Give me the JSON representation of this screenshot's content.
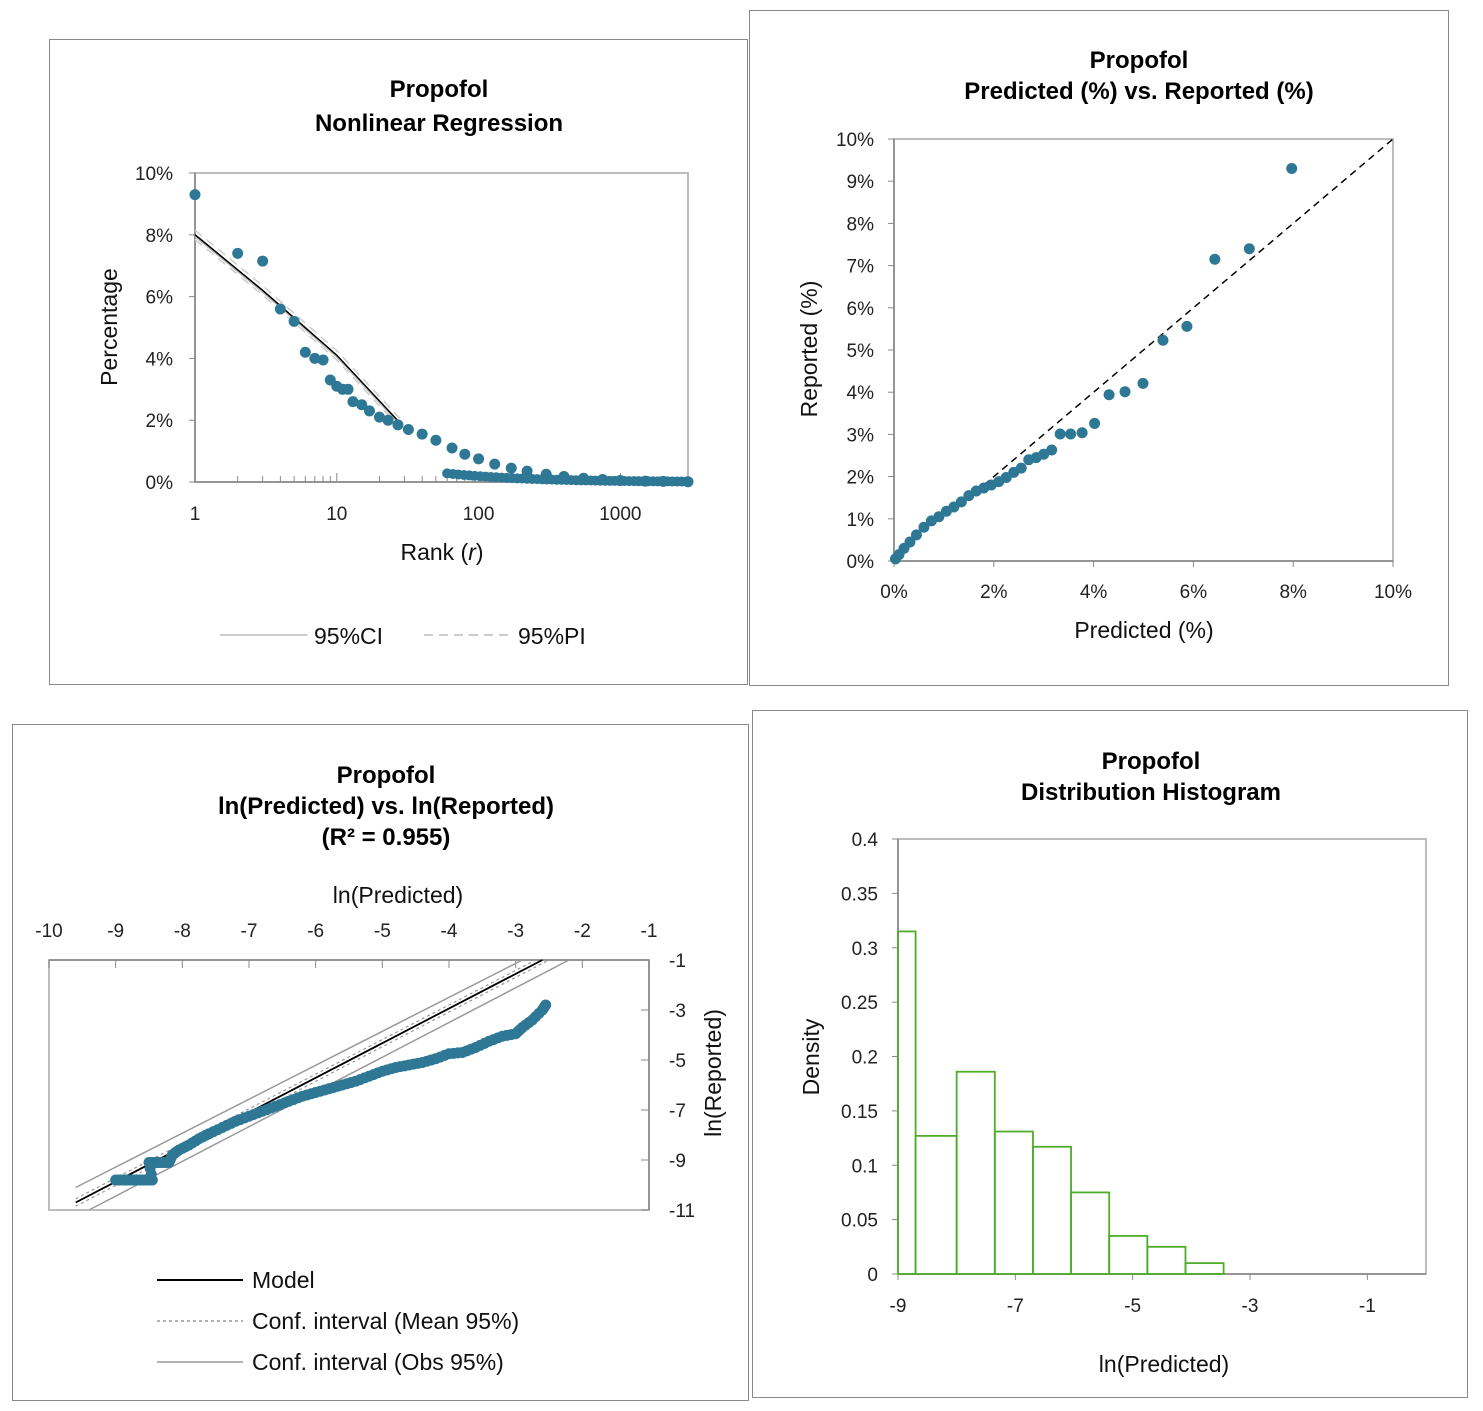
{
  "chart_data": [
    {
      "type": "scatter",
      "title": "Propofol",
      "subtitle": "Nonlinear Regression",
      "xlabel": "Rank (r)",
      "ylabel": "Percentage",
      "x_scale": "log",
      "xlim": [
        1,
        3000
      ],
      "ylim": [
        0,
        0.1
      ],
      "x_ticks": [
        "1",
        "10",
        "100",
        "1000"
      ],
      "y_ticks": [
        "0%",
        "2%",
        "4%",
        "6%",
        "8%",
        "10%"
      ],
      "grid": false,
      "legend": [
        "95%CI",
        "95%PI"
      ],
      "legend_position": "bottom",
      "series": [
        {
          "values_xy": [
            [
              1,
              0.093
            ],
            [
              2,
              0.074
            ],
            [
              3,
              0.0715
            ],
            [
              4,
              0.056
            ],
            [
              5,
              0.052
            ],
            [
              6,
              0.042
            ],
            [
              7,
              0.04
            ],
            [
              8,
              0.0395
            ],
            [
              9,
              0.033
            ],
            [
              10,
              0.031
            ],
            [
              11,
              0.03
            ],
            [
              12,
              0.03
            ],
            [
              13,
              0.026
            ],
            [
              15,
              0.025
            ],
            [
              17,
              0.023
            ],
            [
              20,
              0.021
            ],
            [
              23,
              0.02
            ],
            [
              27,
              0.0185
            ],
            [
              32,
              0.017
            ],
            [
              40,
              0.0155
            ],
            [
              50,
              0.0135
            ],
            [
              65,
              0.011
            ],
            [
              80,
              0.009
            ],
            [
              100,
              0.0075
            ],
            [
              130,
              0.0058
            ],
            [
              170,
              0.0045
            ],
            [
              220,
              0.0035
            ],
            [
              300,
              0.0025
            ],
            [
              400,
              0.0018
            ],
            [
              550,
              0.0012
            ],
            [
              750,
              0.0008
            ],
            [
              1000,
              0.0005
            ],
            [
              1500,
              0.0003
            ],
            [
              2000,
              0.0002
            ],
            [
              3000,
              0.0001
            ]
          ]
        },
        {
          "name": "model",
          "values_xy": [
            [
              1,
              0.08
            ],
            [
              3,
              0.062
            ],
            [
              10,
              0.041
            ],
            [
              28,
              0.019
            ]
          ]
        }
      ]
    },
    {
      "type": "scatter",
      "title": "Propofol",
      "subtitle": "Predicted (%) vs. Reported (%)",
      "xlabel": "Predicted (%)",
      "ylabel": "Reported (%)",
      "xlim": [
        0,
        0.1
      ],
      "ylim": [
        0,
        0.1
      ],
      "x_ticks": [
        "0%",
        "2%",
        "4%",
        "6%",
        "8%",
        "10%"
      ],
      "y_ticks": [
        "0%",
        "1%",
        "2%",
        "3%",
        "4%",
        "5%",
        "6%",
        "7%",
        "8%",
        "9%",
        "10%"
      ],
      "grid": false,
      "reference_line": [
        [
          0.018,
          0.018
        ],
        [
          0.1,
          0.1
        ]
      ],
      "points": [
        [
          0.0797,
          0.093
        ],
        [
          0.0712,
          0.074
        ],
        [
          0.0643,
          0.0715
        ],
        [
          0.0587,
          0.0556
        ],
        [
          0.0539,
          0.0523
        ],
        [
          0.0499,
          0.0421
        ],
        [
          0.0463,
          0.0401
        ],
        [
          0.0431,
          0.0394
        ],
        [
          0.0402,
          0.0326
        ],
        [
          0.0377,
          0.0304
        ],
        [
          0.0354,
          0.0301
        ],
        [
          0.0333,
          0.0301
        ],
        [
          0.0316,
          0.0263
        ],
        [
          0.03,
          0.0253
        ],
        [
          0.0285,
          0.0245
        ],
        [
          0.027,
          0.024
        ],
        [
          0.0255,
          0.022
        ],
        [
          0.024,
          0.021
        ],
        [
          0.0225,
          0.0198
        ],
        [
          0.021,
          0.0188
        ],
        [
          0.0195,
          0.018
        ],
        [
          0.018,
          0.0173
        ],
        [
          0.0165,
          0.0166
        ],
        [
          0.015,
          0.0155
        ],
        [
          0.0135,
          0.014
        ],
        [
          0.012,
          0.0128
        ],
        [
          0.0105,
          0.0118
        ],
        [
          0.009,
          0.0105
        ],
        [
          0.0075,
          0.0095
        ],
        [
          0.006,
          0.008
        ],
        [
          0.0045,
          0.0062
        ],
        [
          0.0032,
          0.0045
        ],
        [
          0.002,
          0.003
        ],
        [
          0.001,
          0.0015
        ],
        [
          0.0003,
          0.0005
        ]
      ]
    },
    {
      "type": "scatter",
      "title": "Propofol",
      "subtitle": "ln(Predicted) vs. ln(Reported)",
      "r_squared_label": "(R² = 0.955)",
      "xlabel": "ln(Predicted)",
      "ylabel": "ln(Reported)",
      "xlim": [
        -10,
        -1
      ],
      "ylim": [
        -11,
        -1
      ],
      "x_ticks": [
        "-10",
        "-9",
        "-8",
        "-7",
        "-6",
        "-5",
        "-4",
        "-3",
        "-2",
        "-1"
      ],
      "y_ticks": [
        "-1",
        "-3",
        "-5",
        "-7",
        "-9",
        "-11"
      ],
      "x_axis_position": "top",
      "y_axis_position": "right",
      "legend": [
        "Model",
        "Conf. interval (Mean 95%)",
        "Conf. interval (Obs 95%)"
      ],
      "legend_position": "bottom",
      "lines": {
        "model": [
          [
            -9.6,
            -10.7
          ],
          [
            -2.6,
            -1.0
          ]
        ],
        "mean_ci_upper": [
          [
            -9.6,
            -10.55
          ],
          [
            -2.7,
            -1.0
          ]
        ],
        "mean_ci_lower": [
          [
            -9.6,
            -10.85
          ],
          [
            -2.5,
            -1.0
          ]
        ],
        "obs_ci_upper": [
          [
            -9.6,
            -10.1
          ],
          [
            -2.9,
            -1.0
          ]
        ],
        "obs_ci_lower": [
          [
            -9.4,
            -11.0
          ],
          [
            -2.2,
            -1.0
          ]
        ]
      },
      "points": [
        [
          -9.0,
          -9.8
        ],
        [
          -8.9,
          -9.8
        ],
        [
          -8.8,
          -9.8
        ],
        [
          -8.7,
          -9.8
        ],
        [
          -8.6,
          -9.8
        ],
        [
          -8.55,
          -9.8
        ],
        [
          -8.45,
          -9.8
        ],
        [
          -8.5,
          -9.1
        ],
        [
          -8.4,
          -9.1
        ],
        [
          -8.3,
          -9.1
        ],
        [
          -8.2,
          -9.1
        ],
        [
          -8.15,
          -8.8
        ],
        [
          -8.05,
          -8.6
        ],
        [
          -7.9,
          -8.4
        ],
        [
          -7.75,
          -8.15
        ],
        [
          -7.6,
          -7.95
        ],
        [
          -7.4,
          -7.7
        ],
        [
          -7.2,
          -7.45
        ],
        [
          -7.0,
          -7.25
        ],
        [
          -6.8,
          -7.05
        ],
        [
          -6.6,
          -6.85
        ],
        [
          -6.4,
          -6.65
        ],
        [
          -6.2,
          -6.45
        ],
        [
          -6.0,
          -6.3
        ],
        [
          -5.8,
          -6.15
        ],
        [
          -5.6,
          -6.0
        ],
        [
          -5.4,
          -5.85
        ],
        [
          -5.2,
          -5.65
        ],
        [
          -5.0,
          -5.45
        ],
        [
          -4.8,
          -5.3
        ],
        [
          -4.6,
          -5.2
        ],
        [
          -4.4,
          -5.1
        ],
        [
          -4.2,
          -4.95
        ],
        [
          -4.0,
          -4.75
        ],
        [
          -3.8,
          -4.7
        ],
        [
          -3.6,
          -4.5
        ],
        [
          -3.4,
          -4.25
        ],
        [
          -3.2,
          -4.05
        ],
        [
          -3.0,
          -3.95
        ],
        [
          -2.9,
          -3.7
        ],
        [
          -2.75,
          -3.4
        ],
        [
          -2.6,
          -3.0
        ],
        [
          -2.55,
          -2.8
        ]
      ]
    },
    {
      "type": "bar",
      "title": "Propofol",
      "subtitle": "Distribution Histogram",
      "xlabel": "ln(Predicted)",
      "ylabel": "Density",
      "xlim": [
        -9,
        0
      ],
      "ylim": [
        0,
        0.4
      ],
      "x_ticks": [
        "-9",
        "-7",
        "-5",
        "-3",
        "-1"
      ],
      "y_ticks": [
        "0",
        "0.05",
        "0.1",
        "0.15",
        "0.2",
        "0.25",
        "0.3",
        "0.35",
        "0.4"
      ],
      "bar_color": "#4fad2a",
      "bins": [
        {
          "from": -9.0,
          "to": -8.7,
          "value": 0.315
        },
        {
          "from": -8.7,
          "to": -8.0,
          "value": 0.127
        },
        {
          "from": -8.0,
          "to": -7.35,
          "value": 0.186
        },
        {
          "from": -7.35,
          "to": -6.7,
          "value": 0.131
        },
        {
          "from": -6.7,
          "to": -6.05,
          "value": 0.117
        },
        {
          "from": -6.05,
          "to": -5.4,
          "value": 0.075
        },
        {
          "from": -5.4,
          "to": -4.75,
          "value": 0.035
        },
        {
          "from": -4.75,
          "to": -4.1,
          "value": 0.025
        },
        {
          "from": -4.1,
          "to": -3.45,
          "value": 0.01
        }
      ]
    }
  ],
  "colors": {
    "point": "#2e7896",
    "frame": "#bdbdbd",
    "ci_line": "#bbbbbb",
    "ref_line": "#000000"
  }
}
